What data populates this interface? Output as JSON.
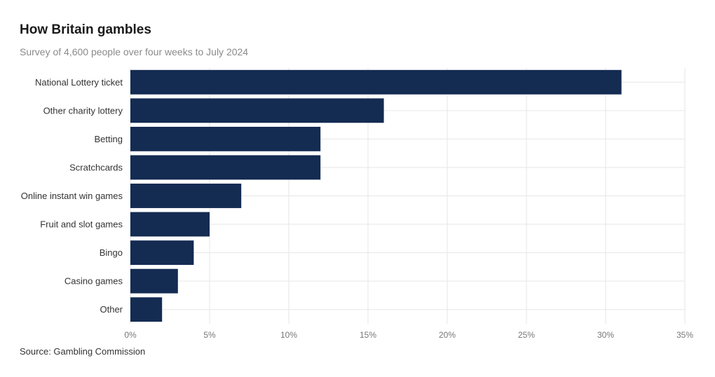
{
  "header": {
    "title": "How Britain gambles",
    "subtitle": "Survey of 4,600 people over four weeks to July 2024"
  },
  "footer": {
    "source": "Source: Gambling Commission"
  },
  "colors": {
    "bar": "#142b52",
    "grid": "#e6e6e6"
  },
  "chart_data": {
    "type": "bar",
    "orientation": "horizontal",
    "categories": [
      "National Lottery ticket",
      "Other charity lottery",
      "Betting",
      "Scratchcards",
      "Online instant win games",
      "Fruit and slot games",
      "Bingo",
      "Casino games",
      "Other"
    ],
    "values": [
      31,
      16,
      12,
      12,
      7,
      5,
      4,
      3,
      2
    ],
    "xlim": [
      0,
      35
    ],
    "xticks": [
      0,
      5,
      10,
      15,
      20,
      25,
      30,
      35
    ],
    "xtick_labels": [
      "0%",
      "5%",
      "10%",
      "15%",
      "20%",
      "25%",
      "30%",
      "35%"
    ],
    "grid": true
  }
}
